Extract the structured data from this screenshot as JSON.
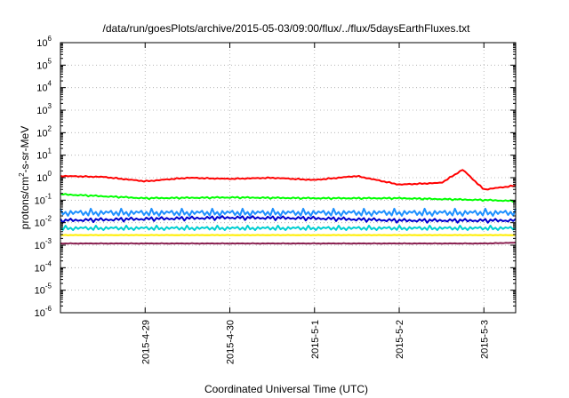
{
  "chart_data": {
    "type": "line",
    "title": "/data/run/goesPlots/archive/2015-05-03/09:00/flux/../flux/5daysEarthFluxes.txt",
    "xlabel": "Coordinated Universal Time (UTC)",
    "ylabel": {
      "base": "protons/cm",
      "sup": "2",
      "rest": "-s-sr-MeV"
    },
    "y_scale": "log",
    "ylim": [
      1e-06,
      1000000.0
    ],
    "y_ticks": [
      {
        "base": "10",
        "exp": "-6"
      },
      {
        "base": "10",
        "exp": "-5"
      },
      {
        "base": "10",
        "exp": "-4"
      },
      {
        "base": "10",
        "exp": "-3"
      },
      {
        "base": "10",
        "exp": "-2"
      },
      {
        "base": "10",
        "exp": "-1"
      },
      {
        "base": "10",
        "exp": "0"
      },
      {
        "base": "10",
        "exp": "1"
      },
      {
        "base": "10",
        "exp": "2"
      },
      {
        "base": "10",
        "exp": "3"
      },
      {
        "base": "10",
        "exp": "4"
      },
      {
        "base": "10",
        "exp": "5"
      },
      {
        "base": "10",
        "exp": "6"
      }
    ],
    "xlim": [
      "2015-04-28T00:00",
      "2015-05-03T09:00"
    ],
    "x_ticks": [
      "2015-4-29",
      "2015-4-30",
      "2015-5-1",
      "2015-5-2",
      "2015-5-3"
    ],
    "grid": true,
    "series": [
      {
        "color": "#ff0000",
        "x": [
          "2015-04-28T00:00",
          "2015-04-28T12:00",
          "2015-04-29T00:00",
          "2015-04-29T12:00",
          "2015-04-30T00:00",
          "2015-04-30T12:00",
          "2015-05-01T00:00",
          "2015-05-01T12:00",
          "2015-05-02T00:00",
          "2015-05-02T12:00",
          "2015-05-02T18:00",
          "2015-05-03T00:00",
          "2015-05-03T09:00"
        ],
        "y": [
          1.2,
          1.1,
          0.7,
          1.0,
          0.9,
          1.0,
          0.8,
          1.2,
          0.5,
          0.6,
          2.3,
          0.3,
          0.45
        ]
      },
      {
        "color": "#00ff00",
        "x": [
          "2015-04-28T00:00",
          "2015-04-29T00:00",
          "2015-04-30T00:00",
          "2015-05-01T00:00",
          "2015-05-02T00:00",
          "2015-05-03T00:00",
          "2015-05-03T09:00"
        ],
        "y": [
          0.18,
          0.12,
          0.13,
          0.12,
          0.12,
          0.1,
          0.09
        ]
      },
      {
        "color": "#1e90ff",
        "x": [
          "2015-04-28T00:00",
          "2015-04-29T00:00",
          "2015-04-30T00:00",
          "2015-05-01T00:00",
          "2015-05-02T00:00",
          "2015-05-03T00:00",
          "2015-05-03T09:00"
        ],
        "y": [
          0.03,
          0.03,
          0.03,
          0.03,
          0.03,
          0.03,
          0.03
        ]
      },
      {
        "color": "#0000cd",
        "x": [
          "2015-04-28T00:00",
          "2015-04-29T00:00",
          "2015-04-30T00:00",
          "2015-05-01T00:00",
          "2015-05-02T00:00",
          "2015-05-03T00:00",
          "2015-05-03T09:00"
        ],
        "y": [
          0.012,
          0.014,
          0.016,
          0.015,
          0.012,
          0.012,
          0.012
        ]
      },
      {
        "color": "#00ced1",
        "x": [
          "2015-04-28T00:00",
          "2015-04-29T00:00",
          "2015-04-30T00:00",
          "2015-05-01T00:00",
          "2015-05-02T00:00",
          "2015-05-03T00:00",
          "2015-05-03T09:00"
        ],
        "y": [
          0.006,
          0.006,
          0.006,
          0.006,
          0.006,
          0.006,
          0.006
        ]
      },
      {
        "color": "#ffee00",
        "x": [
          "2015-04-28T00:00",
          "2015-04-29T00:00",
          "2015-04-30T00:00",
          "2015-05-01T00:00",
          "2015-05-02T00:00",
          "2015-05-03T00:00",
          "2015-05-03T09:00"
        ],
        "y": [
          0.0028,
          0.0028,
          0.0028,
          0.0028,
          0.0028,
          0.0028,
          0.0028
        ]
      },
      {
        "color": "#8b2252",
        "x": [
          "2015-04-28T00:00",
          "2015-04-29T00:00",
          "2015-04-30T00:00",
          "2015-05-01T00:00",
          "2015-05-02T00:00",
          "2015-05-03T00:00",
          "2015-05-03T09:00"
        ],
        "y": [
          0.0012,
          0.0012,
          0.0012,
          0.0012,
          0.0012,
          0.0012,
          0.0013
        ]
      }
    ]
  }
}
